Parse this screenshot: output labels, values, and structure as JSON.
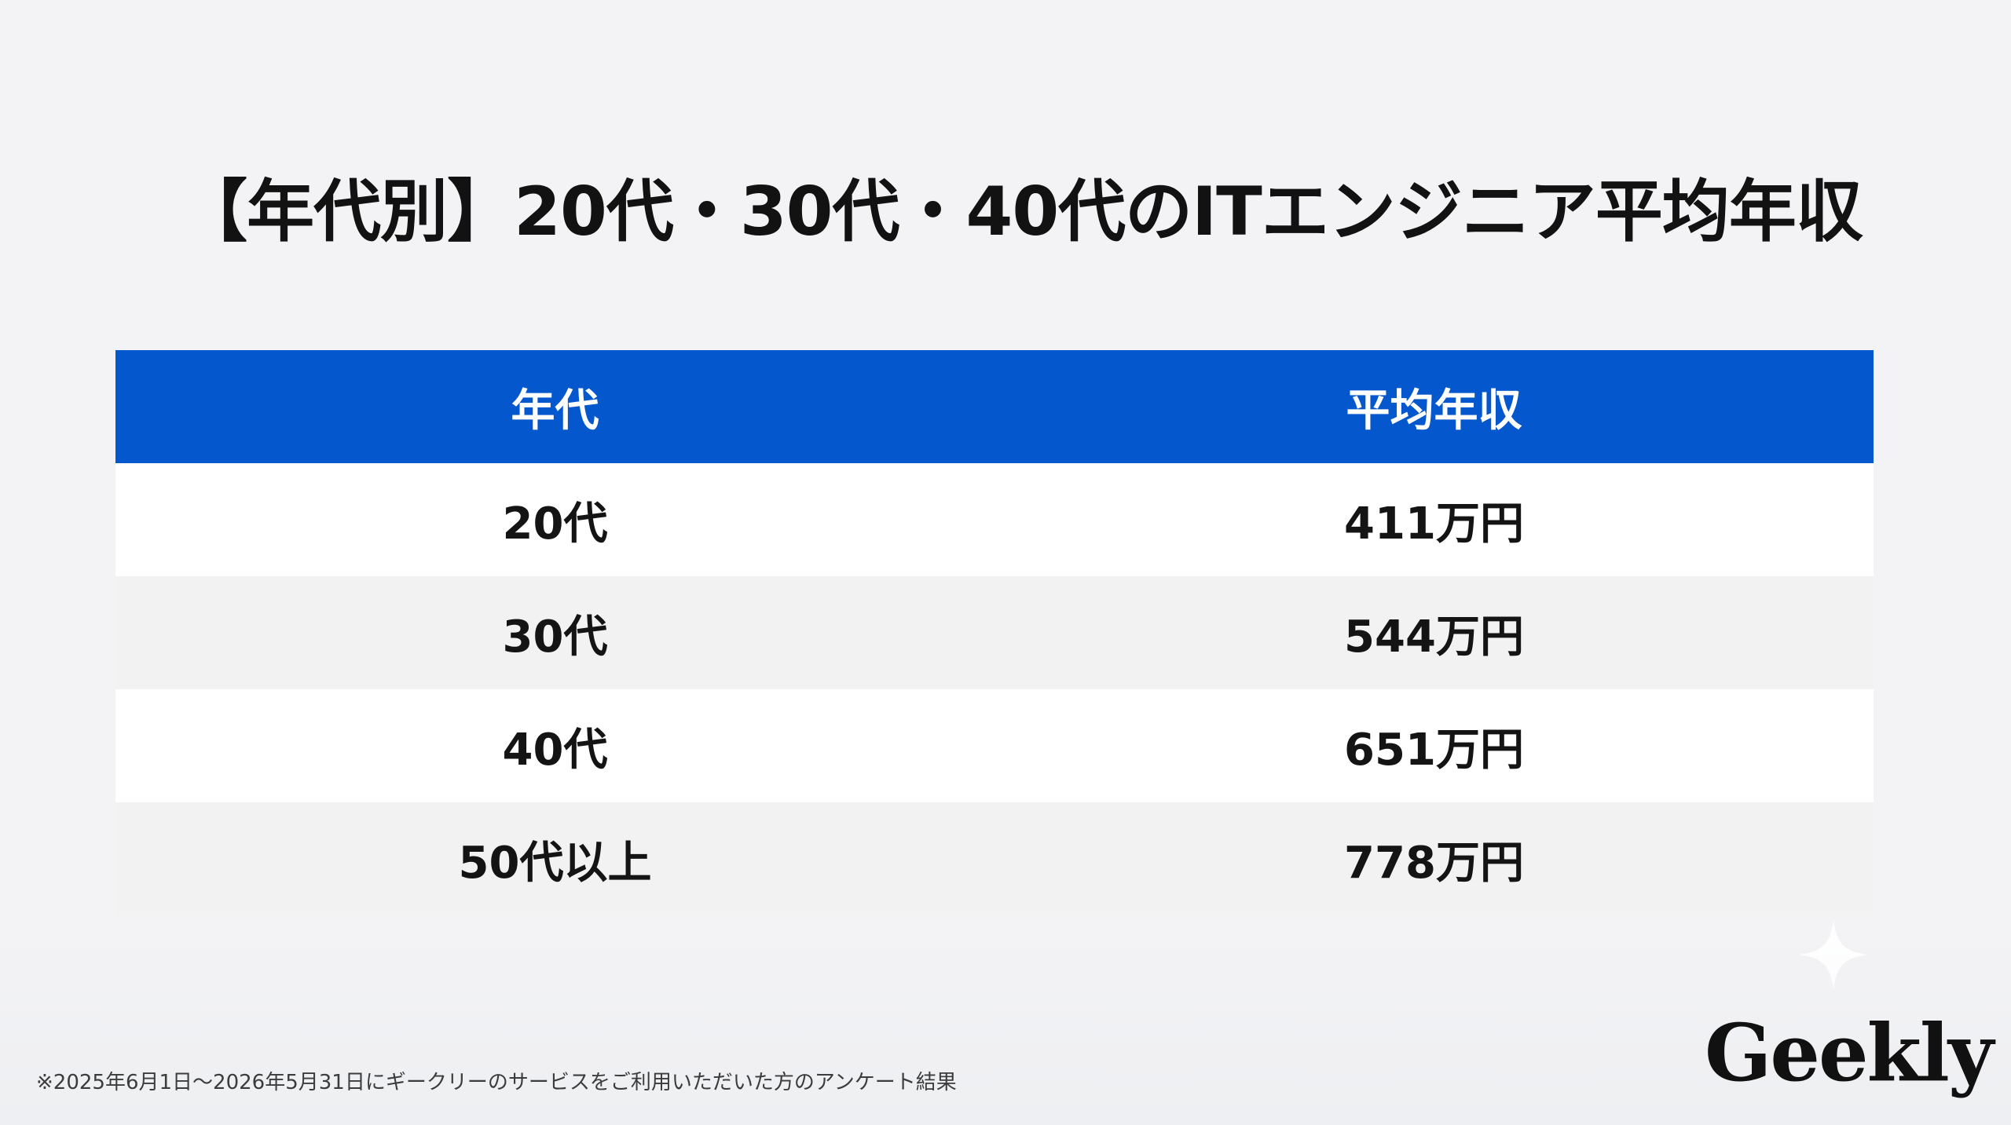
{
  "title": "【年代別】20代・30代・40代のITエンジニア平均年収",
  "chart_data": {
    "type": "table",
    "columns": [
      "年代",
      "平均年収"
    ],
    "rows": [
      [
        "20代",
        "411万円"
      ],
      [
        "30代",
        "544万円"
      ],
      [
        "40代",
        "651万円"
      ],
      [
        "50代以上",
        "778万円"
      ]
    ],
    "values": [
      411,
      544,
      651,
      778
    ],
    "unit": "万円"
  },
  "colors": {
    "header_bg": "#0457cc",
    "row_alt": "#f2f2f3"
  },
  "footnote": "※2025年6月1日〜2026年5月31日にギークリーのサービスをご利用いただいた方のアンケート結果",
  "logo": "Geekly"
}
